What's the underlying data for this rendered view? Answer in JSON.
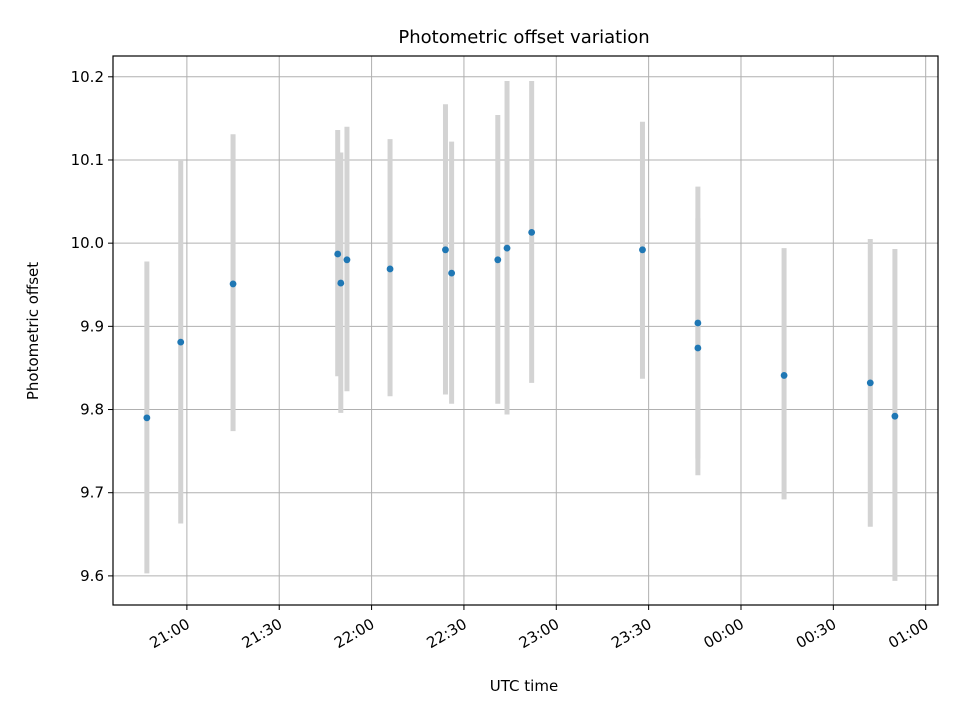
{
  "chart_data": {
    "type": "scatter",
    "title": "Photometric offset variation",
    "xlabel": "UTC time",
    "ylabel": "Photometric offset",
    "grid": true,
    "colors": {
      "point": "#1f77b4",
      "errorbar": "#d3d3d3",
      "grid": "#b0b0b0",
      "axes": "#000000"
    },
    "xlim": [
      "20:36",
      "01:04"
    ],
    "ylim": [
      9.565,
      10.225
    ],
    "x_ticks": [
      "21:00",
      "21:30",
      "22:00",
      "22:30",
      "23:00",
      "23:30",
      "00:00",
      "00:30",
      "01:00"
    ],
    "y_ticks": [
      "9.6",
      "9.7",
      "9.8",
      "9.9",
      "10.0",
      "10.1",
      "10.2"
    ],
    "points": [
      {
        "time": "20:47",
        "y": 9.79,
        "ylow": 9.603,
        "yhigh": 9.978
      },
      {
        "time": "20:58",
        "y": 9.881,
        "ylow": 9.663,
        "yhigh": 10.1
      },
      {
        "time": "21:15",
        "y": 9.951,
        "ylow": 9.774,
        "yhigh": 10.131
      },
      {
        "time": "21:49",
        "y": 9.987,
        "ylow": 9.84,
        "yhigh": 10.136
      },
      {
        "time": "21:50",
        "y": 9.952,
        "ylow": 9.796,
        "yhigh": 10.109
      },
      {
        "time": "21:52",
        "y": 9.98,
        "ylow": 9.822,
        "yhigh": 10.14
      },
      {
        "time": "22:06",
        "y": 9.969,
        "ylow": 9.816,
        "yhigh": 10.125
      },
      {
        "time": "22:24",
        "y": 9.992,
        "ylow": 9.818,
        "yhigh": 10.167
      },
      {
        "time": "22:26",
        "y": 9.964,
        "ylow": 9.807,
        "yhigh": 10.122
      },
      {
        "time": "22:41",
        "y": 9.98,
        "ylow": 9.807,
        "yhigh": 10.154
      },
      {
        "time": "22:44",
        "y": 9.994,
        "ylow": 9.794,
        "yhigh": 10.195
      },
      {
        "time": "22:52",
        "y": 10.013,
        "ylow": 9.832,
        "yhigh": 10.195
      },
      {
        "time": "23:28",
        "y": 9.992,
        "ylow": 9.837,
        "yhigh": 10.146
      },
      {
        "time": "23:46",
        "y": 9.904,
        "ylow": 9.741,
        "yhigh": 10.068
      },
      {
        "time": "23:46",
        "y": 9.874,
        "ylow": 9.721,
        "yhigh": 10.03
      },
      {
        "time": "00:14",
        "y": 9.841,
        "ylow": 9.692,
        "yhigh": 9.994
      },
      {
        "time": "00:42",
        "y": 9.832,
        "ylow": 9.659,
        "yhigh": 10.005
      },
      {
        "time": "00:50",
        "y": 9.792,
        "ylow": 9.594,
        "yhigh": 9.993
      }
    ]
  }
}
